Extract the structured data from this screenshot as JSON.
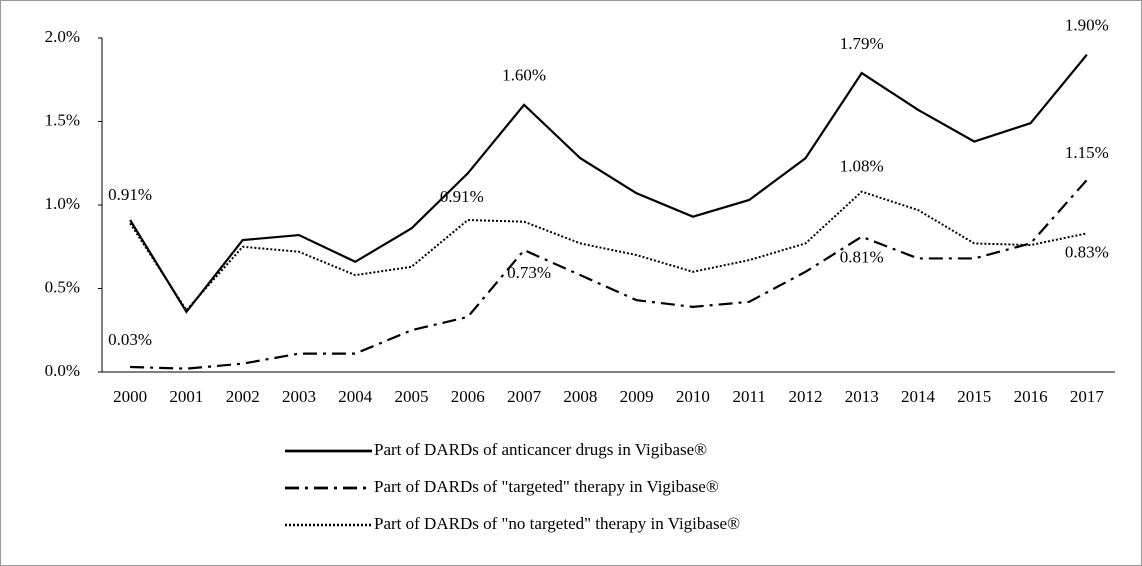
{
  "chart_data": {
    "type": "line",
    "categories": [
      "2000",
      "2001",
      "2002",
      "2003",
      "2004",
      "2005",
      "2006",
      "2007",
      "2008",
      "2009",
      "2010",
      "2011",
      "2012",
      "2013",
      "2014",
      "2015",
      "2016",
      "2017"
    ],
    "series": [
      {
        "name": "Part of DARDs of anticancer drugs in Vigibase®",
        "color": "#000000",
        "style": "solid",
        "values": [
          0.91,
          0.36,
          0.79,
          0.82,
          0.66,
          0.86,
          1.19,
          1.6,
          1.28,
          1.07,
          0.93,
          1.03,
          1.28,
          1.79,
          1.57,
          1.38,
          1.49,
          1.9
        ],
        "value_labels": [
          "0.91%",
          null,
          null,
          null,
          null,
          null,
          null,
          "1.60%",
          null,
          null,
          null,
          null,
          null,
          "1.79%",
          null,
          null,
          null,
          "1.90%"
        ]
      },
      {
        "name": "Part of DARDs of \"targeted\" therapy in Vigibase®",
        "color": "#000000",
        "style": "dashdot",
        "values": [
          0.03,
          0.02,
          0.05,
          0.11,
          0.11,
          0.25,
          0.33,
          0.73,
          0.58,
          0.43,
          0.39,
          0.42,
          0.6,
          0.81,
          0.68,
          0.68,
          0.77,
          1.15
        ],
        "value_labels": [
          "0.03%",
          null,
          null,
          null,
          null,
          null,
          null,
          "0.73%",
          null,
          null,
          null,
          null,
          null,
          "0.81%",
          null,
          null,
          null,
          "1.15%"
        ]
      },
      {
        "name": "Part of DARDs of \"no targeted\" therapy in Vigibase®",
        "color": "#000000",
        "style": "dotted",
        "values": [
          0.89,
          0.37,
          0.75,
          0.72,
          0.58,
          0.63,
          0.91,
          0.9,
          0.77,
          0.7,
          0.6,
          0.67,
          0.77,
          1.08,
          0.97,
          0.77,
          0.76,
          0.83
        ],
        "value_labels": [
          null,
          null,
          null,
          null,
          null,
          null,
          "0.91%",
          null,
          null,
          null,
          null,
          null,
          null,
          "1.08%",
          null,
          null,
          null,
          "0.83%"
        ]
      }
    ],
    "ylim": [
      0,
      2
    ],
    "yticks": [
      {
        "value": 0,
        "label": "0.0%"
      },
      {
        "value": 0.5,
        "label": "0.5%"
      },
      {
        "value": 1,
        "label": "1.0%"
      },
      {
        "value": 1.5,
        "label": "1.5%"
      },
      {
        "value": 2,
        "label": "2.0%"
      }
    ],
    "grid": false,
    "legend": "bottom"
  }
}
